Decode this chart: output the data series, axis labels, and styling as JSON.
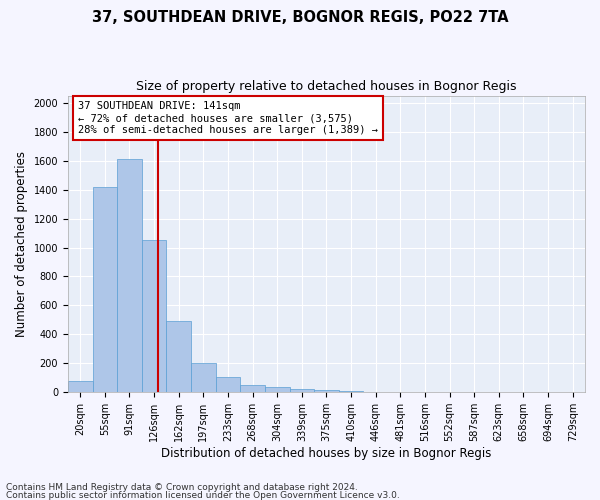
{
  "title_line1": "37, SOUTHDEAN DRIVE, BOGNOR REGIS, PO22 7TA",
  "title_line2": "Size of property relative to detached houses in Bognor Regis",
  "xlabel": "Distribution of detached houses by size in Bognor Regis",
  "ylabel": "Number of detached properties",
  "categories": [
    "20sqm",
    "55sqm",
    "91sqm",
    "126sqm",
    "162sqm",
    "197sqm",
    "233sqm",
    "268sqm",
    "304sqm",
    "339sqm",
    "375sqm",
    "410sqm",
    "446sqm",
    "481sqm",
    "516sqm",
    "552sqm",
    "587sqm",
    "623sqm",
    "658sqm",
    "694sqm",
    "729sqm"
  ],
  "values": [
    80,
    1420,
    1610,
    1050,
    490,
    205,
    105,
    50,
    35,
    25,
    18,
    10,
    0,
    0,
    0,
    0,
    0,
    0,
    0,
    0,
    0
  ],
  "bar_color": "#aec6e8",
  "bar_edge_color": "#5a9fd4",
  "vline_x_index": 3.17,
  "vline_color": "#cc0000",
  "annotation_text": "37 SOUTHDEAN DRIVE: 141sqm\n← 72% of detached houses are smaller (3,575)\n28% of semi-detached houses are larger (1,389) →",
  "annotation_box_color": "#ffffff",
  "annotation_box_edge_color": "#cc0000",
  "ylim": [
    0,
    2050
  ],
  "yticks": [
    0,
    200,
    400,
    600,
    800,
    1000,
    1200,
    1400,
    1600,
    1800,
    2000
  ],
  "footer_line1": "Contains HM Land Registry data © Crown copyright and database right 2024.",
  "footer_line2": "Contains public sector information licensed under the Open Government Licence v3.0.",
  "background_color": "#e8eef8",
  "fig_background_color": "#f5f5ff",
  "grid_color": "#ffffff",
  "title_fontsize": 10.5,
  "subtitle_fontsize": 9,
  "axis_label_fontsize": 8.5,
  "tick_fontsize": 7,
  "annotation_fontsize": 7.5,
  "footer_fontsize": 6.5
}
